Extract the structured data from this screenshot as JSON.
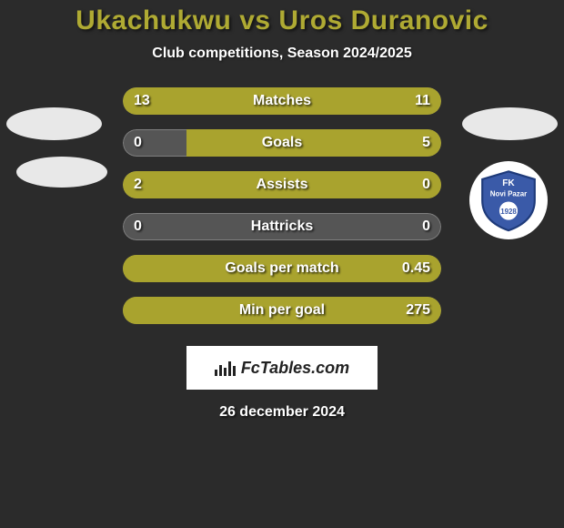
{
  "background_color": "#2b2b2b",
  "title": {
    "text": "Ukachukwu vs Uros Duranovic",
    "color": "#afaa33",
    "fontsize": 30
  },
  "subtitle": {
    "text": "Club competitions, Season 2024/2025",
    "color": "#ffffff",
    "fontsize": 16
  },
  "bar_colors": {
    "fill": "#a9a32e",
    "track": "#555555"
  },
  "rows": [
    {
      "label": "Matches",
      "left_val": "13",
      "right_val": "11",
      "left_pct": 54,
      "right_pct": 46
    },
    {
      "label": "Goals",
      "left_val": "0",
      "right_val": "5",
      "left_pct": 0,
      "right_pct": 100,
      "right_only_partial": 80
    },
    {
      "label": "Assists",
      "left_val": "2",
      "right_val": "0",
      "left_pct": 100,
      "right_pct": 0
    },
    {
      "label": "Hattricks",
      "left_val": "0",
      "right_val": "0",
      "left_pct": 0,
      "right_pct": 0
    },
    {
      "label": "Goals per match",
      "left_val": "",
      "right_val": "0.45",
      "left_pct": 0,
      "right_pct": 100
    },
    {
      "label": "Min per goal",
      "left_val": "",
      "right_val": "275",
      "left_pct": 0,
      "right_pct": 100
    }
  ],
  "side_ovals": {
    "color": "#e8e8e8"
  },
  "crest": {
    "bg": "#ffffff",
    "shield_fill": "#3a5aa8",
    "shield_stroke": "#1e3a7a",
    "text_top": "FK",
    "text_mid": "Novi Pazar",
    "year": "1928"
  },
  "footer": {
    "banner_bg": "#ffffff",
    "text": "FcTables.com",
    "text_color": "#222222"
  },
  "date": {
    "text": "26 december 2024",
    "color": "#ffffff"
  }
}
